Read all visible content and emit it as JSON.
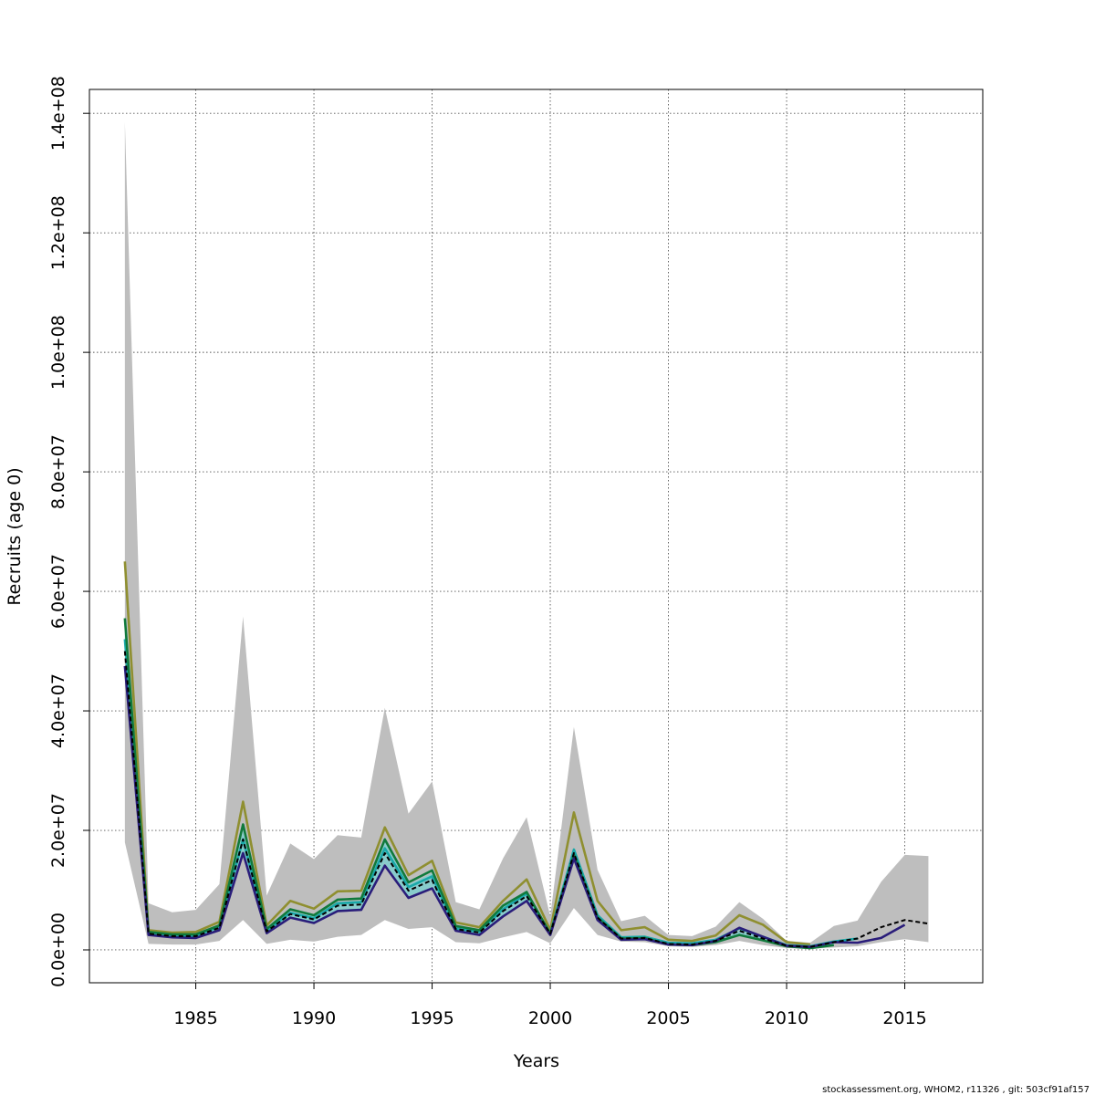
{
  "chart_data": {
    "type": "line",
    "title": "",
    "xlabel": "Years",
    "ylabel": "Recruits (age 0)",
    "xlim": [
      1980.5,
      2018.3
    ],
    "ylim": [
      -5500000,
      144000000
    ],
    "x_ticks": [
      1985,
      1990,
      1995,
      2000,
      2005,
      2010,
      2015
    ],
    "x_tick_labels": [
      "1985",
      "1990",
      "1995",
      "2000",
      "2005",
      "2010",
      "2015"
    ],
    "y_ticks": [
      0,
      20000000,
      40000000,
      60000000,
      80000000,
      100000000,
      120000000,
      140000000
    ],
    "y_tick_labels": [
      "0.0e+00",
      "2.0e+07",
      "4.0e+07",
      "6.0e+07",
      "8.0e+07",
      "1.0e+08",
      "1.2e+08",
      "1.4e+08"
    ],
    "grid": true,
    "legend": "none",
    "colors": {
      "band": "#bebebe",
      "inner_band": "#7fcfcf",
      "olive": "#8f8f30",
      "teal": "#1aa8a8",
      "green": "#107a3c",
      "navy": "#2a1d7a",
      "black": "#000000"
    },
    "band": {
      "x": [
        1982,
        1983,
        1984,
        1985,
        1986,
        1987,
        1988,
        1989,
        1990,
        1991,
        1992,
        1993,
        1994,
        1995,
        1996,
        1997,
        1998,
        1999,
        2000,
        2001,
        2002,
        2003,
        2004,
        2005,
        2006,
        2007,
        2008,
        2009,
        2010,
        2011,
        2012,
        2013,
        2014,
        2015,
        2016
      ],
      "lower": [
        18000000,
        1000000,
        900000,
        900000,
        1500000,
        5000000,
        1000000,
        1700000,
        1400000,
        2200000,
        2500000,
        5000000,
        3500000,
        3800000,
        1300000,
        1100000,
        2100000,
        3000000,
        1100000,
        7000000,
        2500000,
        1400000,
        1300000,
        600000,
        500000,
        800000,
        1500000,
        800000,
        300000,
        200000,
        400000,
        600000,
        1300000,
        1800000,
        1300000
      ],
      "upper": [
        138500000,
        7800000,
        6300000,
        6700000,
        11000000,
        55800000,
        9100000,
        17800000,
        15200000,
        19200000,
        18800000,
        40500000,
        22800000,
        28200000,
        8000000,
        6800000,
        15300000,
        22200000,
        5600000,
        37300000,
        13400000,
        4800000,
        5700000,
        2500000,
        2300000,
        3900000,
        8000000,
        5200000,
        1500000,
        1200000,
        4000000,
        4900000,
        11400000,
        15900000,
        15700000
      ]
    },
    "inner_band": {
      "x": [
        1982,
        1983,
        1984,
        1985,
        1986,
        1987,
        1988,
        1989,
        1990,
        1991,
        1992,
        1993,
        1994,
        1995,
        1996,
        1997,
        1998,
        1999,
        2000,
        2001,
        2002,
        2003,
        2004,
        2005,
        2006,
        2007,
        2008,
        2009,
        2010,
        2011,
        2012
      ],
      "lower": [
        49000000,
        2500000,
        2100000,
        2000000,
        3400000,
        16500000,
        2800000,
        5300000,
        4500000,
        6500000,
        6700000,
        14500000,
        9000000,
        10400000,
        3100000,
        2700000,
        5700000,
        8300000,
        2400000,
        15500000,
        5000000,
        1700000,
        1800000,
        800000,
        700000,
        1100000,
        2300000,
        1500000,
        500000,
        300000,
        800000
      ],
      "upper": [
        53000000,
        3000000,
        2600000,
        2600000,
        4100000,
        20000000,
        3400000,
        6500000,
        5600000,
        8000000,
        8200000,
        18200000,
        11000000,
        12800000,
        3800000,
        3200000,
        7200000,
        9900000,
        3000000,
        17000000,
        5900000,
        2200000,
        2300000,
        1100000,
        1000000,
        1500000,
        3200000,
        2200000,
        700000,
        500000,
        1100000
      ]
    },
    "series": [
      {
        "key": "olive",
        "x": [
          1982,
          1983,
          1984,
          1985,
          1986,
          1987,
          1988,
          1989,
          1990,
          1991,
          1992,
          1993,
          1994,
          1995,
          1996,
          1997,
          1998,
          1999,
          2000,
          2001,
          2002,
          2003,
          2004,
          2005,
          2006,
          2007,
          2008,
          2009,
          2010,
          2011
        ],
        "y": [
          65000000,
          3300000,
          2900000,
          3000000,
          4700000,
          24800000,
          4100000,
          8200000,
          6900000,
          9800000,
          9900000,
          20500000,
          12500000,
          14900000,
          4600000,
          3800000,
          8200000,
          11800000,
          3300000,
          23000000,
          8200000,
          3300000,
          3800000,
          1700000,
          1500000,
          2400000,
          5800000,
          4200000,
          1300000,
          900000
        ]
      },
      {
        "key": "teal",
        "x": [
          1982,
          1983,
          1984,
          1985,
          1986,
          1987,
          1988,
          1989,
          1990,
          1991,
          1992,
          1993,
          1994,
          1995,
          1996,
          1997,
          1998,
          1999,
          2000,
          2001,
          2002,
          2003,
          2004,
          2005,
          2006,
          2007,
          2008,
          2009,
          2010,
          2011,
          2012,
          2013
        ],
        "y": [
          52000000,
          2800000,
          2400000,
          2400000,
          3900000,
          18500000,
          3200000,
          6200000,
          5300000,
          7800000,
          8000000,
          17000000,
          10500000,
          12300000,
          3600000,
          3000000,
          6800000,
          9400000,
          2800000,
          16800000,
          5800000,
          2100000,
          2200000,
          1200000,
          1100000,
          1700000,
          3600000,
          2200000,
          800000,
          600000,
          1400000,
          1900000
        ]
      },
      {
        "key": "green",
        "x": [
          1982,
          1983,
          1984,
          1985,
          1986,
          1987,
          1988,
          1989,
          1990,
          1991,
          1992,
          1993,
          1994,
          1995,
          1996,
          1997,
          1998,
          1999,
          2000,
          2001,
          2002,
          2003,
          2004,
          2005,
          2006,
          2007,
          2008,
          2009,
          2010,
          2011,
          2012
        ],
        "y": [
          55500000,
          3000000,
          2600000,
          2600000,
          4100000,
          21000000,
          3500000,
          6800000,
          5800000,
          8400000,
          8600000,
          18500000,
          11300000,
          13300000,
          4000000,
          3300000,
          7400000,
          9700000,
          2700000,
          15900000,
          5400000,
          1900000,
          2000000,
          900000,
          800000,
          1300000,
          2500000,
          1600000,
          600000,
          300000,
          800000
        ]
      },
      {
        "key": "navy",
        "x": [
          1982,
          1983,
          1984,
          1985,
          1986,
          1987,
          1988,
          1989,
          1990,
          1991,
          1992,
          1993,
          1994,
          1995,
          1996,
          1997,
          1998,
          1999,
          2000,
          2001,
          2002,
          2003,
          2004,
          2005,
          2006,
          2007,
          2008,
          2009,
          2010,
          2011,
          2012,
          2013,
          2014,
          2015
        ],
        "y": [
          47500000,
          2500000,
          2100000,
          2000000,
          3300000,
          16200000,
          2800000,
          5400000,
          4500000,
          6500000,
          6700000,
          14100000,
          8700000,
          10300000,
          3200000,
          2500000,
          5600000,
          8200000,
          2500000,
          15300000,
          5000000,
          1700000,
          1800000,
          900000,
          800000,
          1500000,
          3700000,
          2200000,
          700000,
          500000,
          1300000,
          1200000,
          2000000,
          4200000
        ]
      },
      {
        "key": "black",
        "dashed": true,
        "x": [
          1982,
          1983,
          1984,
          1985,
          1986,
          1987,
          1988,
          1989,
          1990,
          1991,
          1992,
          1993,
          1994,
          1995,
          1996,
          1997,
          1998,
          1999,
          2000,
          2001,
          2002,
          2003,
          2004,
          2005,
          2006,
          2007,
          2008,
          2009,
          2010,
          2011,
          2012,
          2013,
          2014,
          2015,
          2016
        ],
        "y": [
          50000000,
          2700000,
          2300000,
          2300000,
          3700000,
          18500000,
          3100000,
          6000000,
          5100000,
          7400000,
          7600000,
          16200000,
          9900000,
          11700000,
          3500000,
          2900000,
          6500000,
          9000000,
          2700000,
          16200000,
          5400000,
          1900000,
          2000000,
          1000000,
          900000,
          1500000,
          3200000,
          1900000,
          700000,
          500000,
          1300000,
          1900000,
          3800000,
          5000000,
          4400000
        ]
      }
    ],
    "footer": "stockassessment.org, WHOM2, r11326 , git: 503cf91af157"
  }
}
